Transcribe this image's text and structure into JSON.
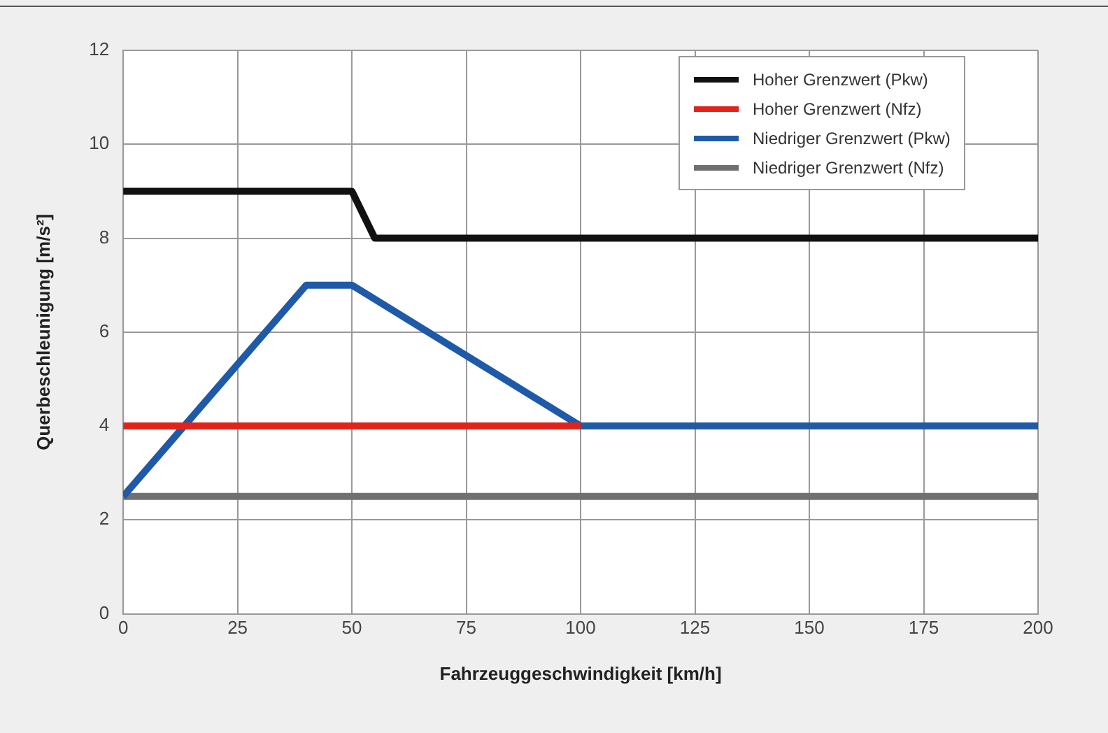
{
  "chart_data": {
    "type": "line",
    "xlabel": "Fahrzeuggeschwindigkeit [km/h]",
    "ylabel": "Querbeschleunigung [m/s²]",
    "xlim": [
      0,
      200
    ],
    "xticks": [
      0,
      25,
      50,
      75,
      100,
      125,
      150,
      175,
      200
    ],
    "ylim": [
      0,
      12
    ],
    "yticks": [
      0,
      2,
      4,
      6,
      8,
      10,
      12
    ],
    "grid": true,
    "legend": "top right",
    "marker": "none",
    "line_style": "solid",
    "series": [
      {
        "name": "Hoher Grenzwert (Pkw)",
        "color": "#111111",
        "x": [
          0,
          50,
          55,
          200
        ],
        "values": [
          9,
          9,
          8,
          8
        ]
      },
      {
        "name": "Hoher Grenzwert (Nfz)",
        "color": "#e2231a",
        "x": [
          0,
          100
        ],
        "values": [
          4,
          4
        ]
      },
      {
        "name": "Niedriger Grenzwert (Pkw)",
        "color": "#1f5aa8",
        "x": [
          0,
          40,
          50,
          100,
          200
        ],
        "values": [
          2.5,
          7,
          7,
          4,
          4
        ]
      },
      {
        "name": "Niedriger Grenzwert (Nfz)",
        "color": "#707070",
        "x": [
          0,
          200
        ],
        "values": [
          2.5,
          2.5
        ]
      }
    ]
  }
}
